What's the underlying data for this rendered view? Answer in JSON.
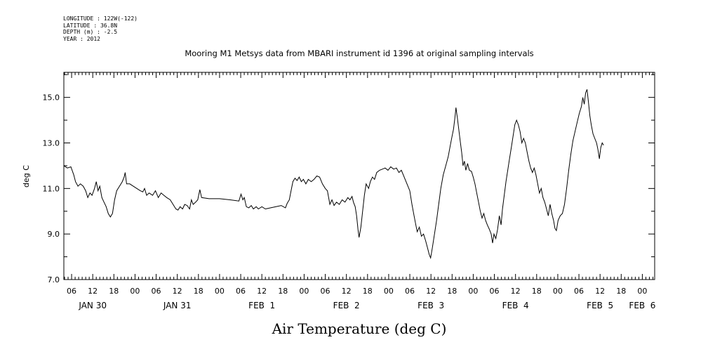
{
  "metadata": {
    "longitude": "LONGITUDE : 122W(-122)",
    "latitude": "LATITUDE : 36.8N",
    "depth": "DEPTH (m) : -2.5",
    "year": "YEAR : 2012"
  },
  "chart_data": {
    "type": "line",
    "title": "Mooring M1 Metsys data from MBARI instrument id 1396 at original sampling intervals",
    "xlabel": "Air Temperature (deg C)",
    "ylabel": "deg C",
    "x_units": "hours since JAN 30 2012 00:00",
    "xlim": [
      3.8,
      171.5
    ],
    "ylim": [
      7.0,
      16.1
    ],
    "yticks": [
      7.0,
      9.0,
      11.0,
      13.0,
      15.0
    ],
    "yticks_minor": [
      8.0,
      10.0,
      12.0,
      14.0,
      16.0
    ],
    "xticks": [
      {
        "x": 6,
        "label": "06"
      },
      {
        "x": 12,
        "label": "12"
      },
      {
        "x": 18,
        "label": "18"
      },
      {
        "x": 24,
        "label": "00"
      },
      {
        "x": 30,
        "label": "06"
      },
      {
        "x": 36,
        "label": "12"
      },
      {
        "x": 42,
        "label": "18"
      },
      {
        "x": 48,
        "label": "00"
      },
      {
        "x": 54,
        "label": "06"
      },
      {
        "x": 60,
        "label": "12"
      },
      {
        "x": 66,
        "label": "18"
      },
      {
        "x": 72,
        "label": "00"
      },
      {
        "x": 78,
        "label": "06"
      },
      {
        "x": 84,
        "label": "12"
      },
      {
        "x": 90,
        "label": "18"
      },
      {
        "x": 96,
        "label": "00"
      },
      {
        "x": 102,
        "label": "06"
      },
      {
        "x": 108,
        "label": "12"
      },
      {
        "x": 114,
        "label": "18"
      },
      {
        "x": 120,
        "label": "00"
      },
      {
        "x": 126,
        "label": "06"
      },
      {
        "x": 132,
        "label": "12"
      },
      {
        "x": 138,
        "label": "18"
      },
      {
        "x": 144,
        "label": "00"
      },
      {
        "x": 150,
        "label": "06"
      },
      {
        "x": 156,
        "label": "12"
      },
      {
        "x": 162,
        "label": "18"
      },
      {
        "x": 168,
        "label": "00"
      }
    ],
    "day_labels": [
      {
        "x": 12,
        "label": "JAN 30"
      },
      {
        "x": 36,
        "label": "JAN 31"
      },
      {
        "x": 60,
        "label": "FEB  1"
      },
      {
        "x": 84,
        "label": "FEB  2"
      },
      {
        "x": 108,
        "label": "FEB  3"
      },
      {
        "x": 132,
        "label": "FEB  4"
      },
      {
        "x": 156,
        "label": "FEB  5"
      },
      {
        "x": 168,
        "label": "FEB  6"
      }
    ],
    "series": [
      {
        "values": [
          [
            3.8,
            12.0
          ],
          [
            4.8,
            11.9
          ],
          [
            5.8,
            11.95
          ],
          [
            6.6,
            11.6
          ],
          [
            7.1,
            11.3
          ],
          [
            7.8,
            11.1
          ],
          [
            8.5,
            11.2
          ],
          [
            9.3,
            11.1
          ],
          [
            10.0,
            10.9
          ],
          [
            10.6,
            10.6
          ],
          [
            11.2,
            10.8
          ],
          [
            11.8,
            10.7
          ],
          [
            12.5,
            11.0
          ],
          [
            13.0,
            11.3
          ],
          [
            13.5,
            10.9
          ],
          [
            14.0,
            11.1
          ],
          [
            14.6,
            10.6
          ],
          [
            15.2,
            10.4
          ],
          [
            15.8,
            10.2
          ],
          [
            16.4,
            9.9
          ],
          [
            17.0,
            9.75
          ],
          [
            17.6,
            9.9
          ],
          [
            18.2,
            10.5
          ],
          [
            18.8,
            10.9
          ],
          [
            19.6,
            11.1
          ],
          [
            20.4,
            11.3
          ],
          [
            20.9,
            11.5
          ],
          [
            21.2,
            11.7
          ],
          [
            21.6,
            11.2
          ],
          [
            22.5,
            11.2
          ],
          [
            23.5,
            11.1
          ],
          [
            24.5,
            11.0
          ],
          [
            25.5,
            10.9
          ],
          [
            26.2,
            10.85
          ],
          [
            26.7,
            11.0
          ],
          [
            27.3,
            10.7
          ],
          [
            28.0,
            10.8
          ],
          [
            29.0,
            10.7
          ],
          [
            29.8,
            10.9
          ],
          [
            30.6,
            10.6
          ],
          [
            31.4,
            10.8
          ],
          [
            32.2,
            10.7
          ],
          [
            33.0,
            10.6
          ],
          [
            34.0,
            10.5
          ],
          [
            34.8,
            10.3
          ],
          [
            35.6,
            10.1
          ],
          [
            36.2,
            10.05
          ],
          [
            36.8,
            10.2
          ],
          [
            37.5,
            10.1
          ],
          [
            38.1,
            10.3
          ],
          [
            38.8,
            10.25
          ],
          [
            39.5,
            10.1
          ],
          [
            40.0,
            10.5
          ],
          [
            40.5,
            10.3
          ],
          [
            41.2,
            10.4
          ],
          [
            41.8,
            10.5
          ],
          [
            42.4,
            10.95
          ],
          [
            42.9,
            10.6
          ],
          [
            45.0,
            10.55
          ],
          [
            48.0,
            10.55
          ],
          [
            51.0,
            10.5
          ],
          [
            53.5,
            10.45
          ],
          [
            54.1,
            10.75
          ],
          [
            54.6,
            10.5
          ],
          [
            55.0,
            10.6
          ],
          [
            55.6,
            10.2
          ],
          [
            56.3,
            10.15
          ],
          [
            57.0,
            10.25
          ],
          [
            57.6,
            10.1
          ],
          [
            58.4,
            10.2
          ],
          [
            59.0,
            10.1
          ],
          [
            60.0,
            10.2
          ],
          [
            61.0,
            10.1
          ],
          [
            62.5,
            10.15
          ],
          [
            64.0,
            10.2
          ],
          [
            65.5,
            10.25
          ],
          [
            66.7,
            10.15
          ],
          [
            67.2,
            10.35
          ],
          [
            67.8,
            10.5
          ],
          [
            68.3,
            10.9
          ],
          [
            68.8,
            11.3
          ],
          [
            69.4,
            11.45
          ],
          [
            70.0,
            11.35
          ],
          [
            70.6,
            11.5
          ],
          [
            71.2,
            11.3
          ],
          [
            71.8,
            11.4
          ],
          [
            72.5,
            11.2
          ],
          [
            73.2,
            11.4
          ],
          [
            74.0,
            11.3
          ],
          [
            74.8,
            11.4
          ],
          [
            75.6,
            11.55
          ],
          [
            76.4,
            11.5
          ],
          [
            77.2,
            11.2
          ],
          [
            78.0,
            11.0
          ],
          [
            78.6,
            10.9
          ],
          [
            79.3,
            10.3
          ],
          [
            79.9,
            10.5
          ],
          [
            80.5,
            10.25
          ],
          [
            81.2,
            10.4
          ],
          [
            82.0,
            10.3
          ],
          [
            82.8,
            10.5
          ],
          [
            83.6,
            10.4
          ],
          [
            84.4,
            10.6
          ],
          [
            85.0,
            10.5
          ],
          [
            85.6,
            10.65
          ],
          [
            86.0,
            10.4
          ],
          [
            86.5,
            10.2
          ],
          [
            86.9,
            9.8
          ],
          [
            87.3,
            9.2
          ],
          [
            87.6,
            8.85
          ],
          [
            88.1,
            9.3
          ],
          [
            88.6,
            10.0
          ],
          [
            89.1,
            10.7
          ],
          [
            89.6,
            11.2
          ],
          [
            90.3,
            11.0
          ],
          [
            90.8,
            11.3
          ],
          [
            91.4,
            11.5
          ],
          [
            92.0,
            11.4
          ],
          [
            92.6,
            11.7
          ],
          [
            93.4,
            11.8
          ],
          [
            94.2,
            11.85
          ],
          [
            95.0,
            11.9
          ],
          [
            95.8,
            11.8
          ],
          [
            96.6,
            11.95
          ],
          [
            97.4,
            11.85
          ],
          [
            98.2,
            11.9
          ],
          [
            98.9,
            11.7
          ],
          [
            99.6,
            11.8
          ],
          [
            100.4,
            11.5
          ],
          [
            101.2,
            11.2
          ],
          [
            102.0,
            10.9
          ],
          [
            102.6,
            10.3
          ],
          [
            103.2,
            9.8
          ],
          [
            103.7,
            9.4
          ],
          [
            104.1,
            9.1
          ],
          [
            104.7,
            9.3
          ],
          [
            105.3,
            8.9
          ],
          [
            105.9,
            9.0
          ],
          [
            106.5,
            8.7
          ],
          [
            107.0,
            8.4
          ],
          [
            107.5,
            8.1
          ],
          [
            107.9,
            7.95
          ],
          [
            108.4,
            8.4
          ],
          [
            109.0,
            9.0
          ],
          [
            109.6,
            9.6
          ],
          [
            110.2,
            10.3
          ],
          [
            110.8,
            11.0
          ],
          [
            111.5,
            11.6
          ],
          [
            112.2,
            12.0
          ],
          [
            112.9,
            12.4
          ],
          [
            113.5,
            12.9
          ],
          [
            114.0,
            13.3
          ],
          [
            114.4,
            13.6
          ],
          [
            114.8,
            14.1
          ],
          [
            115.1,
            14.55
          ],
          [
            115.5,
            14.1
          ],
          [
            115.9,
            13.6
          ],
          [
            116.3,
            13.1
          ],
          [
            116.7,
            12.6
          ],
          [
            117.1,
            12.0
          ],
          [
            117.5,
            12.2
          ],
          [
            117.9,
            11.8
          ],
          [
            118.4,
            12.1
          ],
          [
            118.9,
            11.8
          ],
          [
            119.5,
            11.75
          ],
          [
            120.0,
            11.5
          ],
          [
            120.5,
            11.2
          ],
          [
            121.0,
            10.8
          ],
          [
            121.5,
            10.4
          ],
          [
            122.0,
            10.0
          ],
          [
            122.5,
            9.7
          ],
          [
            123.0,
            9.9
          ],
          [
            123.5,
            9.6
          ],
          [
            124.0,
            9.4
          ],
          [
            124.6,
            9.2
          ],
          [
            125.1,
            9.0
          ],
          [
            125.5,
            8.6
          ],
          [
            125.9,
            9.0
          ],
          [
            126.4,
            8.8
          ],
          [
            126.9,
            9.2
          ],
          [
            127.4,
            9.8
          ],
          [
            127.9,
            9.4
          ],
          [
            128.3,
            10.1
          ],
          [
            128.8,
            10.7
          ],
          [
            129.3,
            11.3
          ],
          [
            129.8,
            11.8
          ],
          [
            130.3,
            12.3
          ],
          [
            130.8,
            12.8
          ],
          [
            131.3,
            13.3
          ],
          [
            131.8,
            13.8
          ],
          [
            132.3,
            14.0
          ],
          [
            132.8,
            13.8
          ],
          [
            133.3,
            13.5
          ],
          [
            133.8,
            13.0
          ],
          [
            134.3,
            13.2
          ],
          [
            134.8,
            13.0
          ],
          [
            135.3,
            12.6
          ],
          [
            135.8,
            12.2
          ],
          [
            136.3,
            11.9
          ],
          [
            136.8,
            11.7
          ],
          [
            137.3,
            11.9
          ],
          [
            137.8,
            11.6
          ],
          [
            138.3,
            11.2
          ],
          [
            138.8,
            10.8
          ],
          [
            139.3,
            11.0
          ],
          [
            139.8,
            10.6
          ],
          [
            140.3,
            10.4
          ],
          [
            140.8,
            10.1
          ],
          [
            141.3,
            9.8
          ],
          [
            141.8,
            10.3
          ],
          [
            142.3,
            9.9
          ],
          [
            142.8,
            9.6
          ],
          [
            143.2,
            9.25
          ],
          [
            143.6,
            9.15
          ],
          [
            144.1,
            9.6
          ],
          [
            144.7,
            9.8
          ],
          [
            145.3,
            9.9
          ],
          [
            145.9,
            10.3
          ],
          [
            146.5,
            11.0
          ],
          [
            147.1,
            11.8
          ],
          [
            147.7,
            12.5
          ],
          [
            148.3,
            13.1
          ],
          [
            148.9,
            13.5
          ],
          [
            149.5,
            13.9
          ],
          [
            150.1,
            14.3
          ],
          [
            150.7,
            14.6
          ],
          [
            151.1,
            15.0
          ],
          [
            151.5,
            14.7
          ],
          [
            151.9,
            15.2
          ],
          [
            152.3,
            15.35
          ],
          [
            152.7,
            14.8
          ],
          [
            153.1,
            14.2
          ],
          [
            153.5,
            13.8
          ],
          [
            154.0,
            13.4
          ],
          [
            154.5,
            13.2
          ],
          [
            155.0,
            13.0
          ],
          [
            155.4,
            12.7
          ],
          [
            155.8,
            12.3
          ],
          [
            156.2,
            12.8
          ],
          [
            156.6,
            13.0
          ],
          [
            157.0,
            12.9
          ]
        ]
      }
    ]
  }
}
